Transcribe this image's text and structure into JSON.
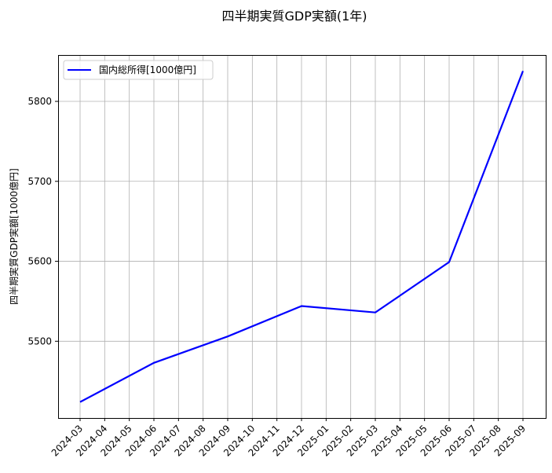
{
  "chart_data": {
    "type": "line",
    "title": "四半期実質GDP実額(1年)",
    "xlabel": "",
    "ylabel": "四半期実質GDP実額[1000億円]",
    "categories": [
      "2024-03",
      "2024-04",
      "2024-05",
      "2024-06",
      "2024-07",
      "2024-08",
      "2024-09",
      "2024-10",
      "2024-11",
      "2024-12",
      "2025-01",
      "2025-02",
      "2025-03",
      "2025-04",
      "2025-05",
      "2025-06",
      "2025-07",
      "2025-08",
      "2025-09"
    ],
    "yticks": [
      5500,
      5600,
      5700,
      5800
    ],
    "ylim": [
      5404,
      5858
    ],
    "grid": true,
    "legend_position": "top-left",
    "series": [
      {
        "name": "国内総所得[1000億円]",
        "color": "#0000ff",
        "x": [
          "2024-03",
          "2024-06",
          "2024-09",
          "2024-12",
          "2025-03",
          "2025-06",
          "2025-09"
        ],
        "values": [
          5424,
          5473,
          5506,
          5544,
          5536,
          5599,
          5838
        ]
      }
    ]
  }
}
